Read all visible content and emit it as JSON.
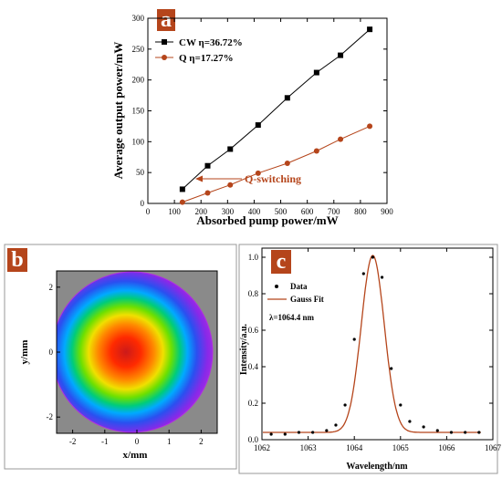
{
  "chart_data": [
    {
      "panel": "a",
      "type": "line",
      "xlabel": "Absorbed pump power/mW",
      "ylabel": "Average output power/mW",
      "xlim": [
        0,
        900
      ],
      "ylim": [
        0,
        300
      ],
      "xticks": [
        0,
        100,
        200,
        300,
        400,
        500,
        600,
        700,
        800,
        900
      ],
      "yticks": [
        0,
        50,
        100,
        150,
        200,
        250,
        300
      ],
      "legend_position": "upper-left",
      "annotation": "Q-switching",
      "series": [
        {
          "name": "CW η=36.72%",
          "color": "#000000",
          "marker": "square",
          "x": [
            130,
            225,
            310,
            415,
            525,
            635,
            725,
            835
          ],
          "y": [
            23,
            61,
            88,
            127,
            171,
            212,
            240,
            282
          ]
        },
        {
          "name": "Q η=17.27%",
          "color": "#b5451b",
          "marker": "circle",
          "x": [
            130,
            225,
            310,
            415,
            525,
            635,
            725,
            835
          ],
          "y": [
            2,
            17,
            30,
            49,
            65,
            85,
            104,
            125
          ]
        }
      ]
    },
    {
      "panel": "b",
      "type": "heatmap",
      "xlabel": "x/mm",
      "ylabel": "y/mm",
      "xlim": [
        -2.5,
        2.5
      ],
      "ylim": [
        -2.5,
        2.5
      ],
      "xticks": [
        -2,
        -1,
        0,
        1,
        2
      ],
      "yticks": [
        -2,
        0,
        2
      ],
      "colors": {
        "background": "#8a8a8a",
        "levels": [
          "#cc1a1a",
          "#ff2a00",
          "#ff8800",
          "#f0e000",
          "#6ee000",
          "#00cc7a",
          "#00aaff",
          "#2a50f0",
          "#8a28e8",
          "#b030e0"
        ]
      }
    },
    {
      "panel": "c",
      "type": "line",
      "xlabel": "Wavelength/nm",
      "ylabel": "Intensity/a.u.",
      "xlim": [
        1062,
        1067
      ],
      "ylim": [
        0,
        1.05
      ],
      "xticks": [
        1062,
        1063,
        1064,
        1065,
        1066,
        1067
      ],
      "yticks": [
        0.0,
        0.2,
        0.4,
        0.6,
        0.8,
        1.0
      ],
      "legend_position": "upper-left",
      "annotation": "λ=1064.4 nm",
      "series": [
        {
          "name": "Data",
          "color": "#000000",
          "marker": "dot",
          "x": [
            1061.9,
            1062.2,
            1062.5,
            1062.8,
            1063.1,
            1063.4,
            1063.6,
            1063.8,
            1064.0,
            1064.2,
            1064.4,
            1064.6,
            1064.8,
            1065.0,
            1065.2,
            1065.5,
            1065.8,
            1066.1,
            1066.4,
            1066.7
          ],
          "y": [
            0.03,
            0.03,
            0.03,
            0.04,
            0.04,
            0.05,
            0.08,
            0.19,
            0.55,
            0.91,
            1.0,
            0.89,
            0.39,
            0.19,
            0.1,
            0.07,
            0.05,
            0.04,
            0.04,
            0.04
          ]
        },
        {
          "name": "Gauss Fit",
          "color": "#b5451b",
          "marker": "none",
          "center": 1064.4,
          "sigma": 0.25,
          "amplitude": 0.97,
          "offset": 0.04
        }
      ]
    }
  ]
}
